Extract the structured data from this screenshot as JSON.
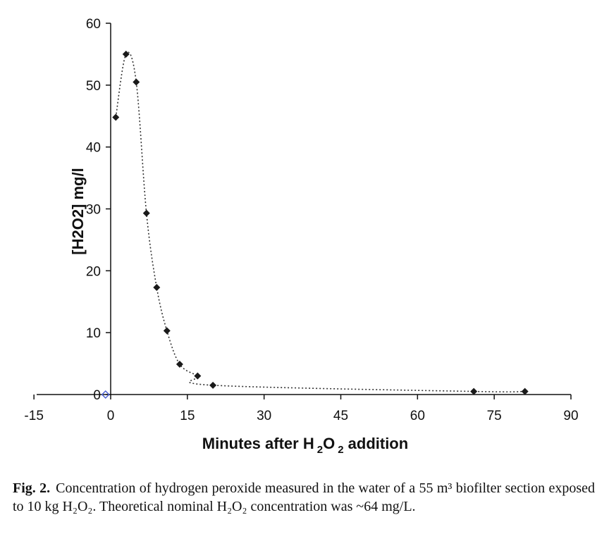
{
  "chart_data": {
    "type": "scatter",
    "title": "",
    "xlabel": "Minutes after H",
    "xlabel_sub1": "2",
    "xlabel_mid": "O",
    "xlabel_sub2": "2",
    "xlabel_end": " addition",
    "ylabel": "[H2O2] mg/l",
    "xlim": [
      -15,
      90
    ],
    "ylim": [
      0,
      60
    ],
    "xticks": [
      -15,
      0,
      15,
      30,
      45,
      60,
      75,
      90
    ],
    "yticks": [
      0,
      10,
      20,
      30,
      40,
      50,
      60
    ],
    "grid": false,
    "legend": "none",
    "series": [
      {
        "marker_color": "#1a1a1a",
        "line_style": "dotted",
        "x": [
          1,
          3,
          5,
          7,
          9,
          11,
          13.5,
          17,
          20,
          71,
          81
        ],
        "y": [
          44.8,
          55,
          50.5,
          29.3,
          17.3,
          10.3,
          4.9,
          3.0,
          1.5,
          0.5,
          0.5
        ]
      },
      {
        "marker_color": "#4a5fd0",
        "marker": "open-diamond",
        "x": [
          -1
        ],
        "y": [
          0
        ]
      }
    ]
  },
  "caption": {
    "label": "Fig. 2.",
    "text": "Concentration of hydrogen peroxide measured in the water of a 55 m³ biofilter section exposed to 10 kg H₂O₂. Theoretical nominal H₂O₂ concentration was ~64 mg/L."
  }
}
